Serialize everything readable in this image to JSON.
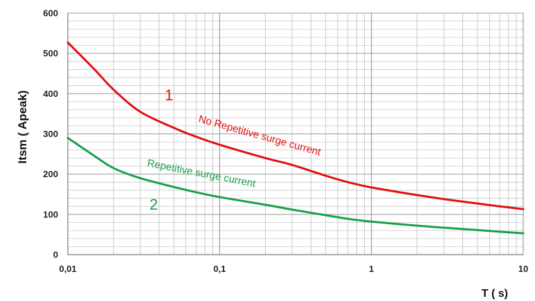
{
  "chart_data": {
    "type": "line",
    "xscale": "log",
    "xlim": [
      0.01,
      10
    ],
    "ylim": [
      0,
      600
    ],
    "xticks": [
      0.01,
      0.1,
      1,
      10
    ],
    "xtick_labels": [
      "0,01",
      "0,1",
      "1",
      "10"
    ],
    "yticks": [
      0,
      100,
      200,
      300,
      400,
      500,
      600
    ],
    "ytick_labels": [
      "0",
      "100",
      "200",
      "300",
      "400",
      "500",
      "600"
    ],
    "xlabel": "T ( s)",
    "ylabel": "Itsm ( Apeak)",
    "grid": true,
    "series": [
      {
        "name": "No Repetitive surge current",
        "marker": "1",
        "color": "#e01010",
        "x": [
          0.01,
          0.015,
          0.02,
          0.03,
          0.05,
          0.07,
          0.1,
          0.2,
          0.3,
          0.5,
          0.7,
          1,
          2,
          3,
          5,
          7,
          10
        ],
        "y": [
          527,
          460,
          410,
          355,
          315,
          293,
          273,
          240,
          223,
          196,
          180,
          167,
          148,
          138,
          127,
          120,
          113
        ]
      },
      {
        "name": "Repetitive surge current",
        "marker": "2",
        "color": "#1aa04a",
        "x": [
          0.01,
          0.015,
          0.02,
          0.03,
          0.05,
          0.07,
          0.1,
          0.2,
          0.3,
          0.5,
          0.7,
          1,
          2,
          3,
          5,
          7,
          10
        ],
        "y": [
          290,
          245,
          215,
          190,
          168,
          155,
          143,
          124,
          112,
          98,
          89,
          82,
          72,
          67,
          61,
          57,
          53
        ]
      }
    ]
  }
}
